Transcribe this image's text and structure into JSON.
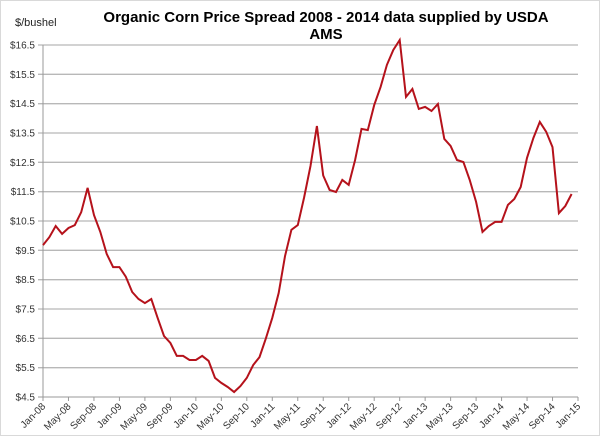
{
  "chart_data": {
    "type": "line",
    "title": "Organic Corn Price Spread 2008 - 2014 data supplied by USDA AMS",
    "xlabel": "",
    "ylabel": "$/bushel",
    "ylim": [
      4.5,
      16.5
    ],
    "y_ticks": [
      "$4.5",
      "$5.5",
      "$6.5",
      "$7.5",
      "$8.5",
      "$9.5",
      "$10.5",
      "$11.5",
      "$12.5",
      "$13.5",
      "$14.5",
      "$15.5",
      "$16.5"
    ],
    "x_ticks": [
      "Jan-08",
      "May-08",
      "Sep-08",
      "Jan-09",
      "May-09",
      "Sep-09",
      "Jan-10",
      "May-10",
      "Sep-10",
      "Jan-11",
      "May-11",
      "Sep-11",
      "Jan-12",
      "May-12",
      "Sep-12",
      "Jan-13",
      "May-13",
      "Sep-13",
      "Jan-14",
      "May-14",
      "Sep-14",
      "Jan-15"
    ],
    "grid": true,
    "line_color": "#b5121b",
    "series": [
      {
        "start": "Jan-08",
        "frequency": "monthly",
        "values": [
          9.68,
          9.95,
          10.33,
          10.06,
          10.26,
          10.36,
          10.8,
          11.63,
          10.7,
          10.13,
          9.38,
          8.93,
          8.93,
          8.6,
          8.08,
          7.84,
          7.7,
          7.84,
          7.2,
          6.58,
          6.34,
          5.9,
          5.9,
          5.76,
          5.76,
          5.9,
          5.73,
          5.15,
          4.98,
          4.84,
          4.67,
          4.87,
          5.15,
          5.59,
          5.86,
          6.5,
          7.2,
          8.05,
          9.3,
          10.2,
          10.36,
          11.3,
          12.38,
          13.74,
          12.05,
          11.56,
          11.49,
          11.9,
          11.73,
          12.58,
          13.64,
          13.6,
          14.45,
          15.07,
          15.82,
          16.33,
          16.67,
          14.73,
          15.0,
          14.32,
          14.39,
          14.25,
          14.49,
          13.3,
          13.06,
          12.58,
          12.51,
          11.9,
          11.15,
          10.13,
          10.33,
          10.47,
          10.47,
          11.05,
          11.25,
          11.66,
          12.65,
          13.33,
          13.88,
          13.54,
          13.02,
          10.77,
          11.01,
          11.42
        ]
      }
    ]
  }
}
